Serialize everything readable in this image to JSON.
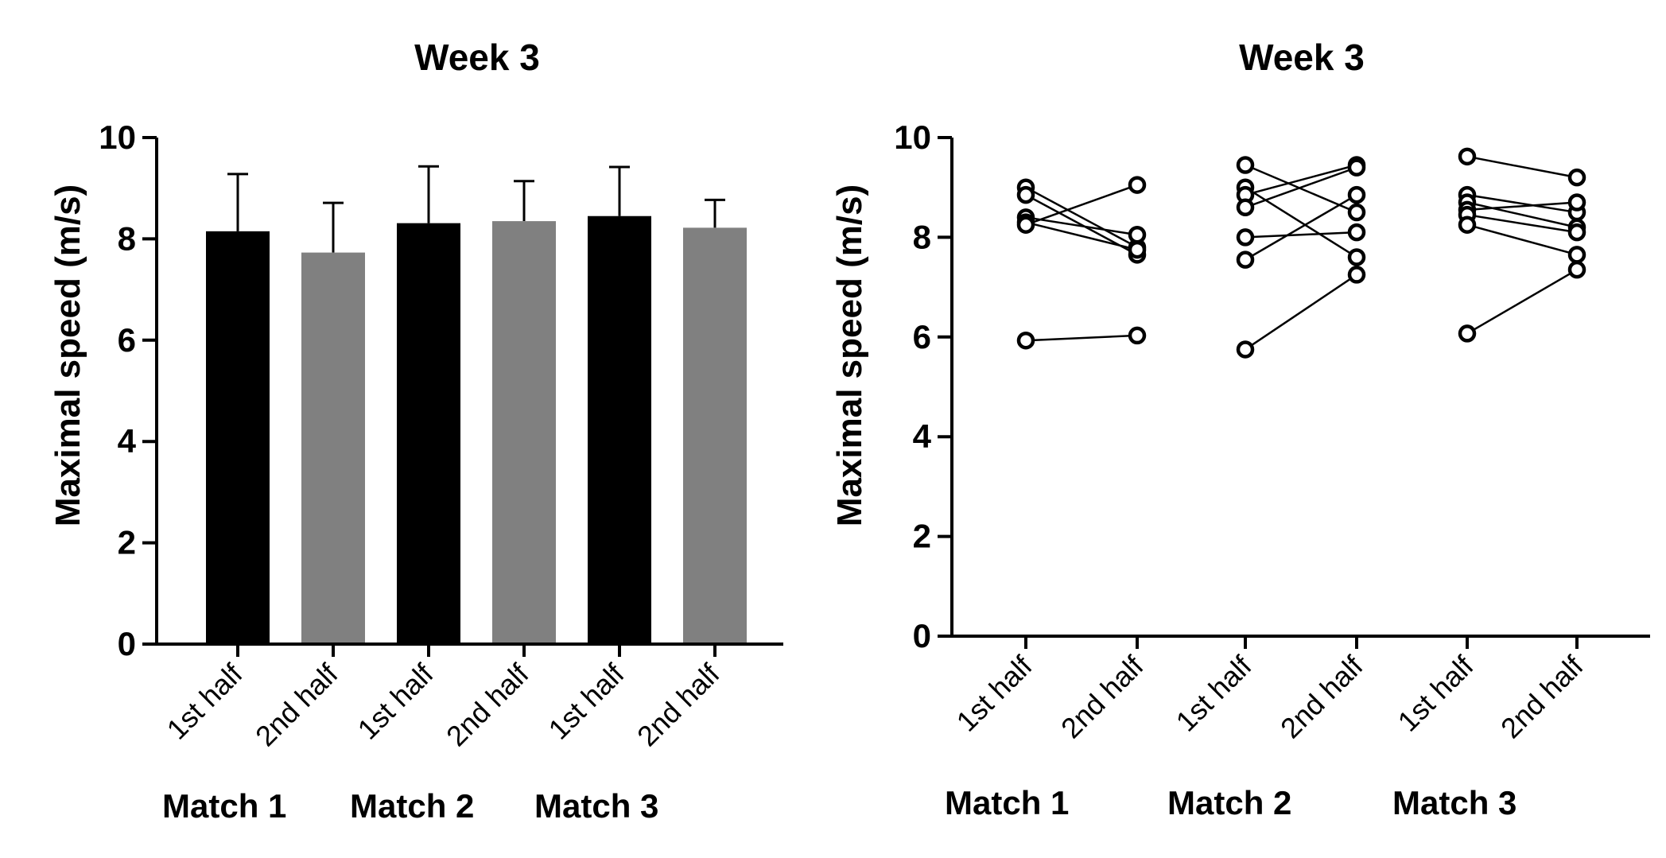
{
  "chart_data": [
    {
      "type": "bar",
      "title": "Week 3",
      "ylabel": "Maximal speed (m/s)",
      "xlabel": "",
      "ylim": [
        0,
        10
      ],
      "yticks": [
        "0",
        "2",
        "4",
        "6",
        "8",
        "10"
      ],
      "categories": [
        "1st half",
        "2nd half",
        "1st half",
        "2nd half",
        "1st half",
        "2nd half"
      ],
      "groups": [
        "Match 1",
        "Match 2",
        "Match 3"
      ],
      "values": [
        8.15,
        7.73,
        8.31,
        8.35,
        8.45,
        8.22
      ],
      "error_upper": [
        1.13,
        0.98,
        1.12,
        0.79,
        0.97,
        0.55
      ],
      "colors": [
        "#000000",
        "#808080",
        "#000000",
        "#808080",
        "#000000",
        "#808080"
      ]
    },
    {
      "type": "scatter",
      "title": "Week 3",
      "ylabel": "Maximal speed (m/s)",
      "xlabel": "",
      "ylim": [
        0,
        10
      ],
      "yticks": [
        "0",
        "2",
        "4",
        "6",
        "8",
        "10"
      ],
      "categories": [
        "1st half",
        "2nd half",
        "1st half",
        "2nd half",
        "1st half",
        "2nd half"
      ],
      "groups": [
        "Match 1",
        "Match 2",
        "Match 3"
      ],
      "paired": [
        {
          "match": "Match 1",
          "pairs": [
            [
              9.0,
              7.8
            ],
            [
              8.85,
              7.65
            ],
            [
              8.4,
              8.05
            ],
            [
              8.3,
              7.75
            ],
            [
              8.25,
              9.05
            ],
            [
              5.93,
              6.03
            ]
          ]
        },
        {
          "match": "Match 2",
          "pairs": [
            [
              9.45,
              8.5
            ],
            [
              9.0,
              7.6
            ],
            [
              8.85,
              9.45
            ],
            [
              8.6,
              9.4
            ],
            [
              8.0,
              8.1
            ],
            [
              7.55,
              8.85
            ],
            [
              5.75,
              7.25
            ]
          ]
        },
        {
          "match": "Match 3",
          "pairs": [
            [
              9.62,
              9.2
            ],
            [
              8.85,
              8.5
            ],
            [
              8.7,
              8.2
            ],
            [
              8.55,
              8.7
            ],
            [
              8.45,
              8.1
            ],
            [
              8.25,
              7.65
            ],
            [
              6.07,
              7.35
            ]
          ]
        }
      ]
    }
  ]
}
